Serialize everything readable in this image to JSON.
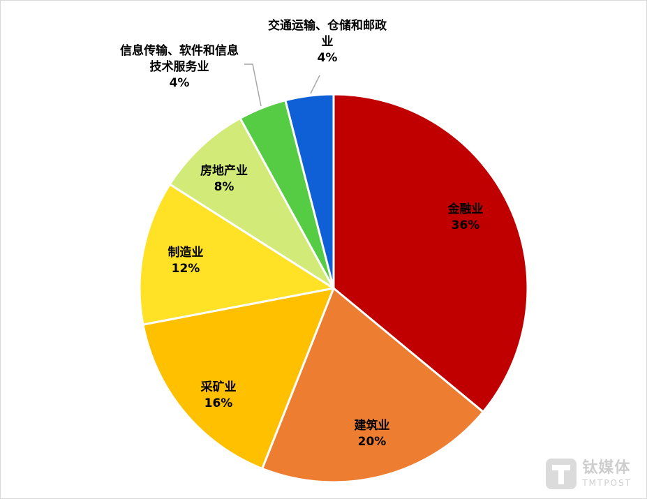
{
  "chart_data": {
    "type": "pie",
    "title": "",
    "start_angle_deg": 0,
    "direction": "clockwise",
    "slices": [
      {
        "label": "金融业",
        "value": 36,
        "display": "36%",
        "color": "#C00000"
      },
      {
        "label": "建筑业",
        "value": 20,
        "display": "20%",
        "color": "#ED7D31"
      },
      {
        "label": "采矿业",
        "value": 16,
        "display": "16%",
        "color": "#FFC000"
      },
      {
        "label": "制造业",
        "value": 12,
        "display": "12%",
        "color": "#FFE126"
      },
      {
        "label": "房地产业",
        "value": 8,
        "display": "8%",
        "color": "#D2EB78"
      },
      {
        "label": "信息传输、软件和信息技术服务业",
        "value": 4,
        "display": "4%",
        "color": "#55CC44"
      },
      {
        "label": "交通运输、仓储和邮政业",
        "value": 4,
        "display": "4%",
        "color": "#0F5FD7"
      }
    ]
  },
  "watermark": {
    "cn": "钛媒体",
    "en": "TMTPOST"
  }
}
